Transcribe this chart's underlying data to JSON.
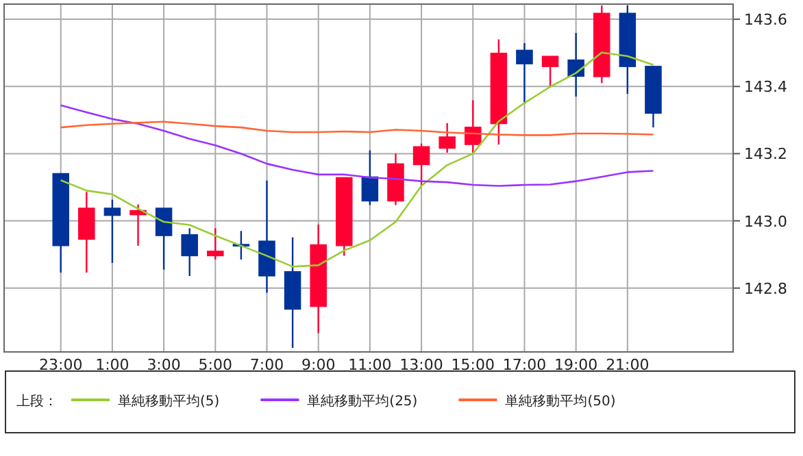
{
  "chart_data": {
    "type": "candlestick",
    "legend_title": "上段：",
    "legend": "bottom",
    "grid": true,
    "categories": [
      "23:00",
      null,
      "1:00",
      null,
      "3:00",
      null,
      "5:00",
      null,
      "7:00",
      null,
      "9:00",
      null,
      "11:00",
      null,
      "13:00",
      null,
      "15:00",
      null,
      "17:00",
      null,
      "19:00",
      null,
      "21:00",
      null
    ],
    "ohlc": [
      [
        143.141,
        143.141,
        142.846,
        142.926
      ],
      [
        142.945,
        143.086,
        142.846,
        143.038
      ],
      [
        143.038,
        143.063,
        142.875,
        143.016
      ],
      [
        143.018,
        143.049,
        142.926,
        143.031
      ],
      [
        143.038,
        143.038,
        142.855,
        142.956
      ],
      [
        142.959,
        142.978,
        142.836,
        142.896
      ],
      [
        142.896,
        142.978,
        142.885,
        142.91
      ],
      [
        142.93,
        142.97,
        142.885,
        142.925
      ],
      [
        142.94,
        143.12,
        142.786,
        142.836
      ],
      [
        142.849,
        142.951,
        142.622,
        142.737
      ],
      [
        142.745,
        142.989,
        142.666,
        142.929
      ],
      [
        142.926,
        143.129,
        142.896,
        143.129
      ],
      [
        143.131,
        143.21,
        143.047,
        143.059
      ],
      [
        143.059,
        143.2,
        143.047,
        143.17
      ],
      [
        143.167,
        143.23,
        143.104,
        143.221
      ],
      [
        143.216,
        143.291,
        143.203,
        143.25
      ],
      [
        143.227,
        143.359,
        143.2,
        143.279
      ],
      [
        143.289,
        143.54,
        143.227,
        143.499
      ],
      [
        143.508,
        143.529,
        143.348,
        143.467
      ],
      [
        143.459,
        143.49,
        143.399,
        143.49
      ],
      [
        143.479,
        143.559,
        143.37,
        143.43
      ],
      [
        143.429,
        143.641,
        143.41,
        143.618
      ],
      [
        143.618,
        143.641,
        143.378,
        143.459
      ],
      [
        143.46,
        143.46,
        143.278,
        143.32
      ]
    ],
    "colors": [
      "#003399",
      "#ff0033",
      "#003399",
      "#ff0033",
      "#003399",
      "#003399",
      "#ff0033",
      "#003399",
      "#003399",
      "#003399",
      "#ff0033",
      "#ff0033",
      "#003399",
      "#ff0033",
      "#ff0033",
      "#ff0033",
      "#ff0033",
      "#ff0033",
      "#003399",
      "#ff0033",
      "#003399",
      "#ff0033",
      "#003399",
      "#003399"
    ],
    "series": [
      {
        "type": "line",
        "name": "単純移動平均(5)",
        "color": "#99cc33",
        "values": [
          143.121,
          143.09,
          143.079,
          143.036,
          142.997,
          142.988,
          142.956,
          142.926,
          142.896,
          142.864,
          142.868,
          142.912,
          142.942,
          142.997,
          143.104,
          143.166,
          143.2,
          143.296,
          143.351,
          143.399,
          143.44,
          143.501,
          143.49,
          143.464
        ]
      },
      {
        "type": "line",
        "name": "単純移動平均(25)",
        "color": "#9933ff",
        "values": [
          143.344,
          143.323,
          143.303,
          143.289,
          143.268,
          143.244,
          143.225,
          143.2,
          143.17,
          143.152,
          143.138,
          143.138,
          143.129,
          143.125,
          143.118,
          143.115,
          143.107,
          143.104,
          143.107,
          143.108,
          143.118,
          143.131,
          143.145,
          143.149
        ]
      },
      {
        "type": "line",
        "name": "単純移動平均(50)",
        "color": "#ff6633",
        "values": [
          143.278,
          143.285,
          143.289,
          143.292,
          143.295,
          143.289,
          143.282,
          143.278,
          143.268,
          143.264,
          143.264,
          143.266,
          143.264,
          143.271,
          143.268,
          143.263,
          143.26,
          143.257,
          143.255,
          143.255,
          143.26,
          143.26,
          143.259,
          143.257
        ]
      }
    ],
    "ylim": [
      142.61,
      143.645
    ],
    "yticks": [
      142.8,
      {
        "value": 143.0,
        "label": "143.0"
      },
      143.2,
      143.4,
      143.6
    ]
  }
}
